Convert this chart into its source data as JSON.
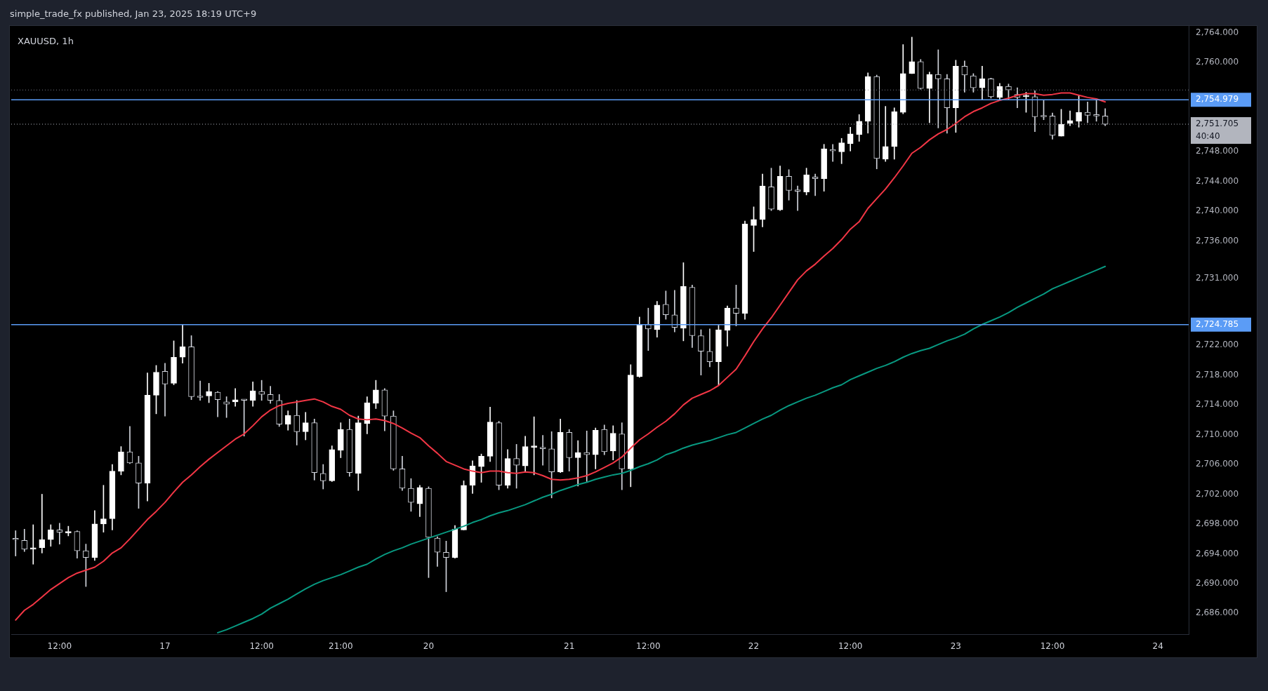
{
  "chart_data": {
    "type": "candlestick",
    "title": "XAUUSD, 1h",
    "annotations": [
      "simple_trade_fx published, Jan 23, 2025 18:19 UTC+9"
    ],
    "categories": [
      null,
      null,
      null,
      null,
      null,
      "12:00",
      null,
      null,
      null,
      null,
      null,
      null,
      null,
      null,
      null,
      null,
      null,
      "17",
      null,
      null,
      null,
      null,
      null,
      null,
      null,
      null,
      null,
      null,
      "12:00",
      null,
      null,
      null,
      null,
      null,
      null,
      null,
      null,
      "21:00",
      null,
      null,
      null,
      null,
      null,
      null,
      null,
      null,
      null,
      "20",
      null,
      null,
      null,
      null,
      null,
      null,
      null,
      null,
      null,
      null,
      null,
      null,
      null,
      null,
      null,
      "21",
      null,
      null,
      null,
      null,
      null,
      null,
      null,
      null,
      "12:00",
      null,
      null,
      null,
      null,
      null,
      null,
      null,
      null,
      null,
      null,
      null,
      "22",
      null,
      null,
      null,
      null,
      null,
      null,
      null,
      null,
      null,
      null,
      "12:00",
      null,
      null,
      null,
      null,
      null,
      null,
      null,
      null,
      null,
      null,
      null,
      "23",
      null,
      null,
      null,
      null,
      null,
      null,
      null,
      null,
      null,
      null,
      "12:00",
      null,
      null,
      null,
      null,
      null,
      null,
      null,
      null,
      null,
      null,
      null,
      "24",
      null,
      null,
      null
    ],
    "ohlc": [
      [
        2696.0,
        2697.1,
        2693.7,
        2695.9
      ],
      [
        2695.8,
        2697.3,
        2694.3,
        2694.6
      ],
      [
        2694.6,
        2697.9,
        2692.6,
        2694.8
      ],
      [
        2694.8,
        2702.0,
        2694.1,
        2695.9
      ],
      [
        2695.9,
        2697.9,
        2695.0,
        2697.2
      ],
      [
        2697.2,
        2698.1,
        2695.3,
        2696.9
      ],
      [
        2696.8,
        2697.7,
        2696.4,
        2697.0
      ],
      [
        2697.0,
        2697.1,
        2693.4,
        2694.4
      ],
      [
        2694.4,
        2695.3,
        2689.6,
        2693.5
      ],
      [
        2693.5,
        2699.8,
        2693.1,
        2698.0
      ],
      [
        2698.0,
        2703.2,
        2696.9,
        2698.7
      ],
      [
        2698.7,
        2706.0,
        2697.2,
        2705.1
      ],
      [
        2705.1,
        2708.4,
        2704.6,
        2707.7
      ],
      [
        2707.7,
        2711.1,
        2706.1,
        2706.2
      ],
      [
        2706.2,
        2707.1,
        2700.1,
        2703.5
      ],
      [
        2703.5,
        2718.3,
        2701.1,
        2715.3
      ],
      [
        2715.3,
        2719.3,
        2712.8,
        2718.4
      ],
      [
        2718.5,
        2719.6,
        2712.5,
        2716.8
      ],
      [
        2716.9,
        2722.6,
        2716.7,
        2720.4
      ],
      [
        2720.4,
        2724.8,
        2719.6,
        2721.8
      ],
      [
        2721.8,
        2723.3,
        2714.7,
        2715.1
      ],
      [
        2715.1,
        2717.2,
        2714.6,
        2715.0
      ],
      [
        2715.2,
        2716.9,
        2714.3,
        2715.8
      ],
      [
        2715.7,
        2715.8,
        2712.4,
        2714.7
      ],
      [
        2714.4,
        2715.1,
        2712.3,
        2714.1
      ],
      [
        2714.4,
        2716.2,
        2713.8,
        2714.7
      ],
      [
        2714.7,
        2714.7,
        2709.8,
        2714.6
      ],
      [
        2714.6,
        2717.1,
        2713.8,
        2715.9
      ],
      [
        2715.8,
        2717.3,
        2714.6,
        2715.4
      ],
      [
        2715.4,
        2716.5,
        2714.2,
        2714.6
      ],
      [
        2714.6,
        2715.4,
        2711.1,
        2711.4
      ],
      [
        2711.4,
        2713.2,
        2710.6,
        2712.6
      ],
      [
        2712.6,
        2714.6,
        2708.6,
        2710.4
      ],
      [
        2710.4,
        2713.0,
        2709.3,
        2711.6
      ],
      [
        2711.6,
        2712.1,
        2703.9,
        2704.9
      ],
      [
        2704.8,
        2706.0,
        2702.7,
        2703.8
      ],
      [
        2703.8,
        2708.5,
        2703.7,
        2708.0
      ],
      [
        2707.9,
        2711.6,
        2706.9,
        2710.7
      ],
      [
        2710.7,
        2712.1,
        2704.4,
        2704.9
      ],
      [
        2704.8,
        2712.5,
        2702.5,
        2711.6
      ],
      [
        2711.5,
        2715.1,
        2710.1,
        2714.3
      ],
      [
        2714.2,
        2717.3,
        2713.5,
        2716.0
      ],
      [
        2716.0,
        2716.2,
        2710.5,
        2712.5
      ],
      [
        2712.5,
        2713.2,
        2705.2,
        2705.4
      ],
      [
        2705.4,
        2707.1,
        2702.5,
        2702.8
      ],
      [
        2702.8,
        2704.1,
        2699.7,
        2700.9
      ],
      [
        2700.7,
        2703.2,
        2699.0,
        2702.9
      ],
      [
        2702.8,
        2703.0,
        2690.8,
        2696.2
      ],
      [
        2696.1,
        2696.3,
        2692.3,
        2694.2
      ],
      [
        2694.2,
        2695.7,
        2688.9,
        2693.5
      ],
      [
        2693.5,
        2697.8,
        2693.4,
        2697.3
      ],
      [
        2697.2,
        2703.8,
        2697.2,
        2703.2
      ],
      [
        2703.2,
        2706.5,
        2702.1,
        2705.8
      ],
      [
        2705.7,
        2707.4,
        2703.6,
        2707.1
      ],
      [
        2707.1,
        2713.7,
        2706.4,
        2711.7
      ],
      [
        2711.6,
        2711.8,
        2702.6,
        2703.2
      ],
      [
        2703.2,
        2708.0,
        2702.8,
        2706.8
      ],
      [
        2706.8,
        2708.7,
        2702.8,
        2705.9
      ],
      [
        2705.8,
        2709.8,
        2705.0,
        2708.4
      ],
      [
        2708.3,
        2712.4,
        2704.6,
        2708.4
      ],
      [
        2708.3,
        2709.9,
        2705.9,
        2708.1
      ],
      [
        2708.1,
        2710.4,
        2701.5,
        2705.0
      ],
      [
        2705.0,
        2712.1,
        2704.9,
        2710.3
      ],
      [
        2710.3,
        2710.7,
        2705.1,
        2706.9
      ],
      [
        2706.9,
        2709.2,
        2703.1,
        2707.6
      ],
      [
        2707.6,
        2710.5,
        2703.7,
        2707.3
      ],
      [
        2707.3,
        2710.9,
        2705.4,
        2710.6
      ],
      [
        2710.7,
        2711.3,
        2707.3,
        2707.7
      ],
      [
        2707.8,
        2711.2,
        2706.6,
        2710.2
      ],
      [
        2710.1,
        2711.6,
        2702.6,
        2705.4
      ],
      [
        2705.4,
        2719.4,
        2703.0,
        2718.0
      ],
      [
        2717.8,
        2725.8,
        2717.7,
        2724.8
      ],
      [
        2724.8,
        2727.0,
        2721.3,
        2724.2
      ],
      [
        2724.1,
        2727.9,
        2723.1,
        2727.4
      ],
      [
        2727.5,
        2729.3,
        2725.5,
        2726.1
      ],
      [
        2726.1,
        2729.4,
        2723.8,
        2724.4
      ],
      [
        2724.3,
        2733.1,
        2722.6,
        2729.9
      ],
      [
        2729.8,
        2730.1,
        2721.7,
        2723.3
      ],
      [
        2723.3,
        2724.1,
        2718.0,
        2721.2
      ],
      [
        2721.2,
        2724.2,
        2719.1,
        2719.8
      ],
      [
        2719.8,
        2724.7,
        2716.6,
        2724.1
      ],
      [
        2724.0,
        2727.3,
        2721.9,
        2727.0
      ],
      [
        2727.0,
        2730.1,
        2724.6,
        2726.3
      ],
      [
        2726.3,
        2738.7,
        2725.5,
        2738.3
      ],
      [
        2738.1,
        2740.6,
        2734.6,
        2738.9
      ],
      [
        2738.9,
        2745.0,
        2737.9,
        2743.4
      ],
      [
        2743.3,
        2745.8,
        2740.1,
        2740.3
      ],
      [
        2740.2,
        2746.1,
        2740.1,
        2744.7
      ],
      [
        2744.7,
        2745.6,
        2741.5,
        2742.8
      ],
      [
        2742.8,
        2743.4,
        2740.1,
        2742.7
      ],
      [
        2742.6,
        2745.8,
        2742.2,
        2744.9
      ],
      [
        2744.6,
        2745.0,
        2742.1,
        2744.4
      ],
      [
        2744.4,
        2749.0,
        2742.7,
        2748.4
      ],
      [
        2748.3,
        2749.0,
        2746.7,
        2748.1
      ],
      [
        2748.0,
        2749.8,
        2746.4,
        2749.2
      ],
      [
        2749.1,
        2751.3,
        2748.1,
        2750.4
      ],
      [
        2750.3,
        2753.0,
        2749.4,
        2752.1
      ],
      [
        2752.1,
        2758.6,
        2750.5,
        2758.1
      ],
      [
        2758.1,
        2758.3,
        2745.7,
        2747.1
      ],
      [
        2747.0,
        2754.1,
        2746.7,
        2748.7
      ],
      [
        2748.7,
        2753.9,
        2747.0,
        2753.4
      ],
      [
        2753.3,
        2762.4,
        2753.1,
        2758.5
      ],
      [
        2758.5,
        2763.4,
        2758.5,
        2760.1
      ],
      [
        2760.1,
        2760.4,
        2756.4,
        2756.5
      ],
      [
        2756.5,
        2758.7,
        2751.9,
        2758.4
      ],
      [
        2758.4,
        2761.7,
        2751.2,
        2757.8
      ],
      [
        2757.8,
        2758.4,
        2750.5,
        2753.9
      ],
      [
        2753.9,
        2760.3,
        2750.6,
        2759.5
      ],
      [
        2759.5,
        2760.2,
        2756.0,
        2758.3
      ],
      [
        2758.2,
        2758.5,
        2756.0,
        2756.6
      ],
      [
        2756.6,
        2759.5,
        2755.0,
        2757.8
      ],
      [
        2757.8,
        2757.9,
        2755.2,
        2755.4
      ],
      [
        2755.3,
        2757.2,
        2755.0,
        2756.8
      ],
      [
        2756.8,
        2757.1,
        2755.0,
        2756.3
      ],
      [
        2755.7,
        2756.6,
        2753.9,
        2755.3
      ],
      [
        2755.4,
        2756.0,
        2753.3,
        2755.4
      ],
      [
        2755.4,
        2756.2,
        2750.7,
        2752.7
      ],
      [
        2752.8,
        2754.9,
        2752.3,
        2752.7
      ],
      [
        2752.8,
        2753.2,
        2749.7,
        2750.2
      ],
      [
        2750.1,
        2753.7,
        2750.1,
        2751.7
      ],
      [
        2751.8,
        2753.5,
        2751.5,
        2752.2
      ],
      [
        2752.1,
        2755.6,
        2751.3,
        2753.3
      ],
      [
        2753.3,
        2754.7,
        2751.9,
        2752.9
      ],
      [
        2752.9,
        2754.9,
        2752.1,
        2752.8
      ],
      [
        2752.8,
        2753.8,
        2751.5,
        2751.7
      ],
      null,
      null,
      null,
      null,
      null,
      null,
      null,
      null,
      null
    ],
    "colors": [
      "#d1d4dc",
      "#d1d4dc",
      "#ffffff",
      "#ffffff",
      "#ffffff",
      "#d1d4dc",
      "#ffffff",
      "#d1d4dc",
      "#d1d4dc",
      "#ffffff",
      "#ffffff",
      "#ffffff",
      "#ffffff",
      "#d1d4dc",
      "#d1d4dc",
      "#ffffff",
      "#ffffff",
      "#d1d4dc",
      "#ffffff",
      "#ffffff",
      "#d1d4dc",
      "#d1d4dc",
      "#ffffff",
      "#d1d4dc",
      "#d1d4dc",
      "#ffffff",
      "#d1d4dc",
      "#ffffff",
      "#d1d4dc",
      "#d1d4dc",
      "#d1d4dc",
      "#ffffff",
      "#d1d4dc",
      "#ffffff",
      "#d1d4dc",
      "#d1d4dc",
      "#ffffff",
      "#ffffff",
      "#d1d4dc",
      "#ffffff",
      "#ffffff",
      "#ffffff",
      "#d1d4dc",
      "#d1d4dc",
      "#d1d4dc",
      "#d1d4dc",
      "#ffffff",
      "#d1d4dc",
      "#d1d4dc",
      "#d1d4dc",
      "#ffffff",
      "#ffffff",
      "#ffffff",
      "#ffffff",
      "#ffffff",
      "#d1d4dc",
      "#ffffff",
      "#d1d4dc",
      "#ffffff",
      "#ffffff",
      "#d1d4dc",
      "#d1d4dc",
      "#ffffff",
      "#d1d4dc",
      "#ffffff",
      "#d1d4dc",
      "#ffffff",
      "#d1d4dc",
      "#ffffff",
      "#d1d4dc",
      "#ffffff",
      "#ffffff",
      "#d1d4dc",
      "#ffffff",
      "#d1d4dc",
      "#d1d4dc",
      "#ffffff",
      "#d1d4dc",
      "#d1d4dc",
      "#d1d4dc",
      "#ffffff",
      "#ffffff",
      "#d1d4dc",
      "#ffffff",
      "#ffffff",
      "#ffffff",
      "#d1d4dc",
      "#ffffff",
      "#d1d4dc",
      "#d1d4dc",
      "#ffffff",
      "#d1d4dc",
      "#ffffff",
      "#d1d4dc",
      "#ffffff",
      "#ffffff",
      "#ffffff",
      "#ffffff",
      "#d1d4dc",
      "#ffffff",
      "#ffffff",
      "#ffffff",
      "#ffffff",
      "#d1d4dc",
      "#ffffff",
      "#d1d4dc",
      "#d1d4dc",
      "#ffffff",
      "#d1d4dc",
      "#d1d4dc",
      "#ffffff",
      "#d1d4dc",
      "#ffffff",
      "#d1d4dc",
      "#d1d4dc",
      "#ffffff",
      "#d1d4dc",
      "#d1d4dc",
      "#d1d4dc",
      "#ffffff",
      "#ffffff",
      "#ffffff",
      "#d1d4dc",
      "#d1d4dc",
      "#d1d4dc",
      null,
      null,
      null,
      null,
      null,
      null,
      null,
      null,
      null
    ],
    "series": [
      {
        "type": "line",
        "color": "#f23645",
        "values": [
          2685.1,
          2686.4,
          2687.2,
          2688.2,
          2689.2,
          2690.0,
          2690.8,
          2691.4,
          2691.8,
          2692.2,
          2693.0,
          2694.1,
          2694.8,
          2696.0,
          2697.3,
          2698.6,
          2699.7,
          2700.9,
          2702.3,
          2703.6,
          2704.6,
          2705.7,
          2706.7,
          2707.6,
          2708.5,
          2709.4,
          2710.1,
          2711.2,
          2712.4,
          2713.3,
          2713.9,
          2714.2,
          2714.4,
          2714.6,
          2714.8,
          2714.4,
          2713.8,
          2713.4,
          2712.6,
          2712.1,
          2712.0,
          2712.1,
          2711.9,
          2711.5,
          2710.9,
          2710.2,
          2709.6,
          2708.5,
          2707.5,
          2706.4,
          2705.9,
          2705.4,
          2705.1,
          2704.9,
          2705.1,
          2705.1,
          2704.9,
          2704.8,
          2705.0,
          2704.9,
          2704.5,
          2704.0,
          2703.9,
          2704.0,
          2704.2,
          2704.5,
          2705.0,
          2705.6,
          2706.2,
          2707.0,
          2708.2,
          2709.3,
          2710.1,
          2711.0,
          2711.8,
          2712.8,
          2714.0,
          2714.9,
          2715.4,
          2715.9,
          2716.6,
          2717.7,
          2718.8,
          2720.6,
          2722.5,
          2724.2,
          2725.7,
          2727.4,
          2729.1,
          2730.8,
          2732.0,
          2732.9,
          2734.0,
          2735.0,
          2736.2,
          2737.6,
          2738.6,
          2740.4,
          2741.7,
          2743.0,
          2744.5,
          2746.1,
          2747.8,
          2748.6,
          2749.6,
          2750.4,
          2751.0,
          2751.8,
          2752.7,
          2753.4,
          2753.9,
          2754.5,
          2754.9,
          2755.2,
          2755.6,
          2755.8,
          2755.8,
          2755.6,
          2755.7,
          2755.9,
          2755.9,
          2755.6,
          2755.3,
          2755.1,
          2754.7,
          null,
          null,
          null,
          null,
          null,
          null,
          null,
          null,
          null
        ]
      },
      {
        "type": "line",
        "color": "#089981",
        "values": [
          null,
          null,
          null,
          null,
          null,
          null,
          null,
          null,
          null,
          null,
          null,
          null,
          null,
          null,
          null,
          null,
          null,
          null,
          null,
          null,
          null,
          null,
          null,
          2683.4,
          2683.8,
          2684.3,
          2684.8,
          2685.3,
          2685.9,
          2686.7,
          2687.3,
          2687.9,
          2688.6,
          2689.3,
          2689.9,
          2690.4,
          2690.8,
          2691.2,
          2691.7,
          2692.2,
          2692.6,
          2693.3,
          2693.9,
          2694.4,
          2694.8,
          2695.3,
          2695.7,
          2696.1,
          2696.5,
          2696.9,
          2697.3,
          2697.7,
          2698.2,
          2698.6,
          2699.1,
          2699.5,
          2699.8,
          2700.2,
          2700.6,
          2701.1,
          2701.6,
          2702.0,
          2702.5,
          2702.9,
          2703.3,
          2703.6,
          2704.0,
          2704.3,
          2704.6,
          2704.8,
          2705.2,
          2705.7,
          2706.1,
          2706.6,
          2707.3,
          2707.7,
          2708.2,
          2708.6,
          2708.9,
          2709.2,
          2709.6,
          2710.0,
          2710.3,
          2710.9,
          2711.5,
          2712.1,
          2712.6,
          2713.3,
          2713.9,
          2714.4,
          2714.9,
          2715.3,
          2715.8,
          2716.3,
          2716.7,
          2717.4,
          2717.9,
          2718.4,
          2718.9,
          2719.3,
          2719.8,
          2720.4,
          2720.9,
          2721.3,
          2721.6,
          2722.1,
          2722.6,
          2723.0,
          2723.5,
          2724.2,
          2724.8,
          2725.3,
          2725.8,
          2726.4,
          2727.1,
          2727.7,
          2728.3,
          2728.9,
          2729.6,
          2730.1,
          2730.6,
          2731.1,
          2731.6,
          2732.1,
          2732.6,
          null,
          null,
          null,
          null,
          null,
          null,
          null,
          null,
          null
        ]
      }
    ],
    "ylim": [
      2683.2,
      2764.9
    ],
    "yticks": [
      {
        "value": 2764,
        "label": "2,764.000"
      },
      {
        "value": 2760,
        "label": "2,760.000"
      },
      {
        "value": 2748,
        "label": "2,748.000"
      },
      {
        "value": 2744,
        "label": "2,744.000"
      },
      {
        "value": 2740,
        "label": "2,740.000"
      },
      {
        "value": 2736,
        "label": "2,736.000"
      },
      {
        "value": 2731,
        "label": "2,731.000"
      },
      {
        "value": 2722,
        "label": "2,722.000"
      },
      {
        "value": 2718,
        "label": "2,718.000"
      },
      {
        "value": 2714,
        "label": "2,714.000"
      },
      {
        "value": 2710,
        "label": "2,710.000"
      },
      {
        "value": 2706,
        "label": "2,706.000"
      },
      {
        "value": 2702,
        "label": "2,702.000"
      },
      {
        "value": 2698,
        "label": "2,698.000"
      },
      {
        "value": 2694,
        "label": "2,694.000"
      },
      {
        "value": 2690,
        "label": "2,690.000"
      },
      {
        "value": 2686,
        "label": "2,686.000"
      }
    ],
    "ref_lines": [
      {
        "axis": "y",
        "value": 2756.3,
        "color": "#787b86",
        "line_style": "dotted"
      },
      {
        "axis": "y",
        "value": 2751.705,
        "label": "2,751.705\n40:40",
        "color": "#b2b5be",
        "line_style": "dotted"
      },
      {
        "axis": "y",
        "value": 2754.979,
        "label": "2,754.979",
        "color": "#5b9cf6"
      },
      {
        "axis": "y",
        "value": 2724.785,
        "label": "2,724.785",
        "color": "#5b9cf6"
      }
    ]
  }
}
